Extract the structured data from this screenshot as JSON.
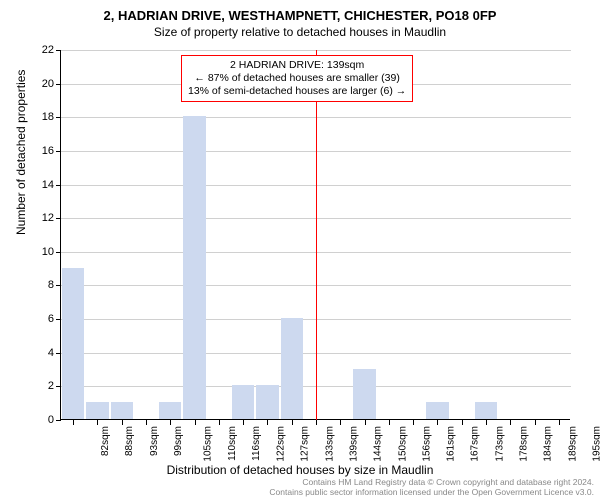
{
  "title": "2, HADRIAN DRIVE, WESTHAMPNETT, CHICHESTER, PO18 0FP",
  "subtitle": "Size of property relative to detached houses in Maudlin",
  "chart": {
    "type": "bar",
    "ylabel": "Number of detached properties",
    "xlabel": "Distribution of detached houses by size in Maudlin",
    "ylim_max": 22,
    "ytick_step": 2,
    "grid_color": "#d0d0d0",
    "bar_color": "#cdd9ef",
    "background_color": "#ffffff",
    "reference_line_color": "#ff0000",
    "categories": [
      "82sqm",
      "88sqm",
      "93sqm",
      "99sqm",
      "105sqm",
      "110sqm",
      "116sqm",
      "122sqm",
      "127sqm",
      "133sqm",
      "139sqm",
      "144sqm",
      "150sqm",
      "156sqm",
      "161sqm",
      "167sqm",
      "173sqm",
      "178sqm",
      "184sqm",
      "189sqm",
      "195sqm"
    ],
    "values": [
      9,
      1,
      1,
      0,
      1,
      18,
      0,
      2,
      2,
      6,
      0,
      0,
      3,
      0,
      0,
      1,
      0,
      1,
      0,
      0,
      0
    ],
    "bar_width_ratio": 0.92,
    "reference_index": 10
  },
  "annotation": {
    "line1": "2 HADRIAN DRIVE: 139sqm",
    "line2": "← 87% of detached houses are smaller (39)",
    "line3": "13% of semi-detached houses are larger (6) →",
    "border_color": "#ff0000",
    "fontsize": 10.5
  },
  "footer": {
    "line1": "Contains HM Land Registry data © Crown copyright and database right 2024.",
    "line2": "Contains public sector information licensed under the Open Government Licence v3.0."
  }
}
